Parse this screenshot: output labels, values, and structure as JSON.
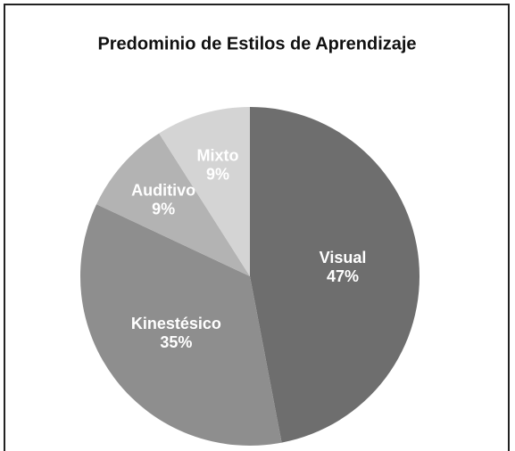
{
  "chart_data": {
    "type": "pie",
    "title": "Predominio de Estilos de Aprendizaje",
    "categories": [
      "Visual",
      "Kinestésico",
      "Auditivo",
      "Mixto"
    ],
    "values": [
      47,
      35,
      9,
      9
    ],
    "value_labels": [
      "47%",
      "35%",
      "9%",
      "9%"
    ],
    "colors": [
      "#6e6e6e",
      "#8e8e8e",
      "#b3b3b3",
      "#d4d4d4"
    ]
  }
}
